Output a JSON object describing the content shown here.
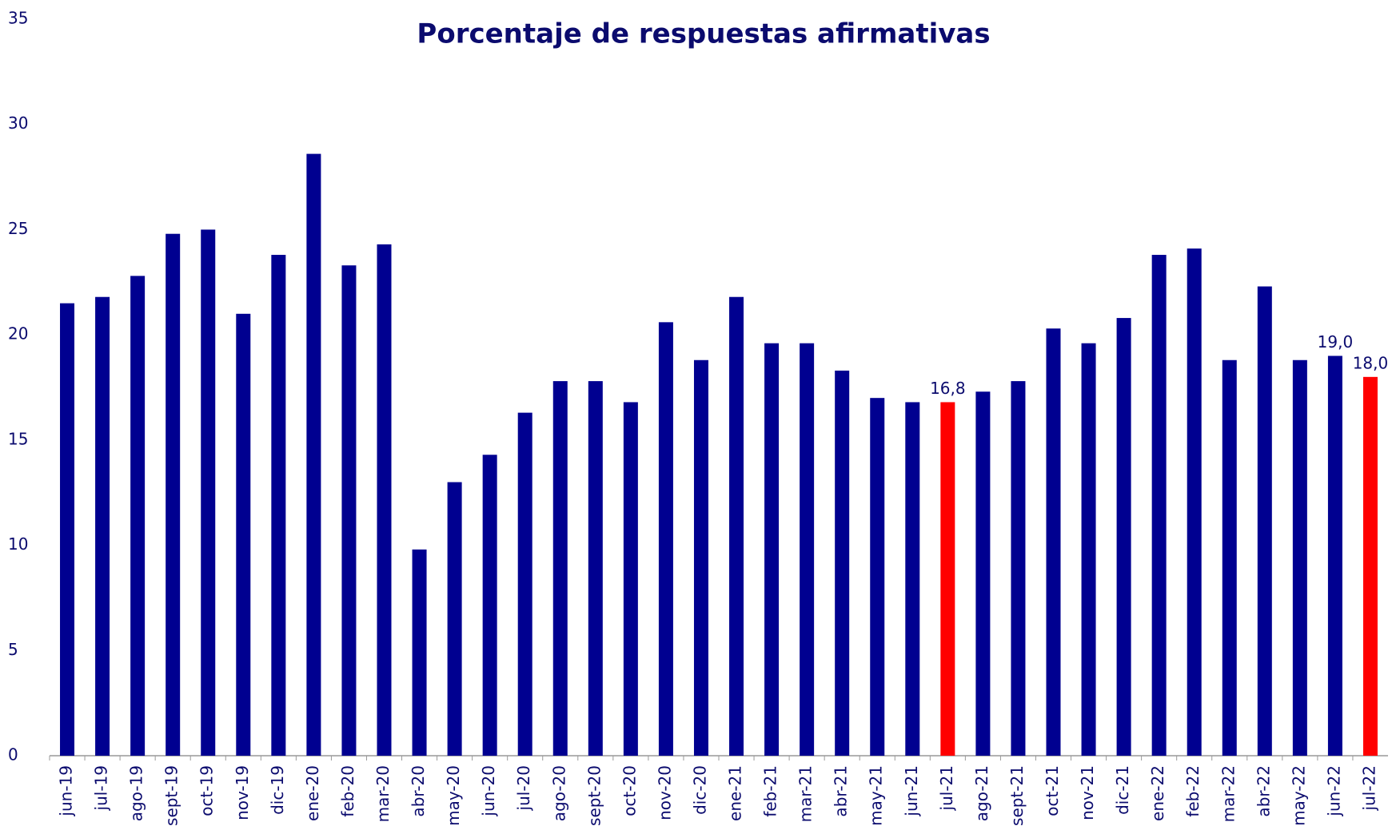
{
  "chart_data": {
    "type": "bar",
    "title": "Porcentaje de respuestas afirmativas",
    "categories": [
      "jun-19",
      "jul-19",
      "ago-19",
      "sept-19",
      "oct-19",
      "nov-19",
      "dic-19",
      "ene-20",
      "feb-20",
      "mar-20",
      "abr-20",
      "may-20",
      "jun-20",
      "jul-20",
      "ago-20",
      "sept-20",
      "oct-20",
      "nov-20",
      "dic-20",
      "ene-21",
      "feb-21",
      "mar-21",
      "abr-21",
      "may-21",
      "jun-21",
      "jul-21",
      "ago-21",
      "sept-21",
      "oct-21",
      "nov-21",
      "dic-21",
      "ene-22",
      "feb-22",
      "mar-22",
      "abr-22",
      "may-22",
      "jun-22",
      "jul-22"
    ],
    "values": [
      21.5,
      21.8,
      22.8,
      24.8,
      25.0,
      21.0,
      23.8,
      28.6,
      23.3,
      24.3,
      9.8,
      13.0,
      14.3,
      16.3,
      17.8,
      17.8,
      16.8,
      20.6,
      18.8,
      21.8,
      19.6,
      19.6,
      18.3,
      17.0,
      16.8,
      16.8,
      17.3,
      17.8,
      20.3,
      19.6,
      20.8,
      23.8,
      24.1,
      18.8,
      22.3,
      18.8,
      19.0,
      18.0
    ],
    "value_labels": [
      null,
      null,
      null,
      null,
      null,
      null,
      null,
      null,
      null,
      null,
      null,
      null,
      null,
      null,
      null,
      null,
      null,
      null,
      null,
      null,
      null,
      null,
      null,
      null,
      null,
      "16,8",
      null,
      null,
      null,
      null,
      null,
      null,
      null,
      null,
      null,
      null,
      "19,0",
      "18,0"
    ],
    "colors": [
      "#000090",
      "#000090",
      "#000090",
      "#000090",
      "#000090",
      "#000090",
      "#000090",
      "#000090",
      "#000090",
      "#000090",
      "#000090",
      "#000090",
      "#000090",
      "#000090",
      "#000090",
      "#000090",
      "#000090",
      "#000090",
      "#000090",
      "#000090",
      "#000090",
      "#000090",
      "#000090",
      "#000090",
      "#000090",
      "#ff0000",
      "#000090",
      "#000090",
      "#000090",
      "#000090",
      "#000090",
      "#000090",
      "#000090",
      "#000090",
      "#000090",
      "#000090",
      "#000090",
      "#ff0000"
    ],
    "ylim": [
      0,
      35
    ],
    "yticks": [
      0,
      5,
      10,
      15,
      20,
      25,
      30,
      35
    ],
    "grid": false
  }
}
